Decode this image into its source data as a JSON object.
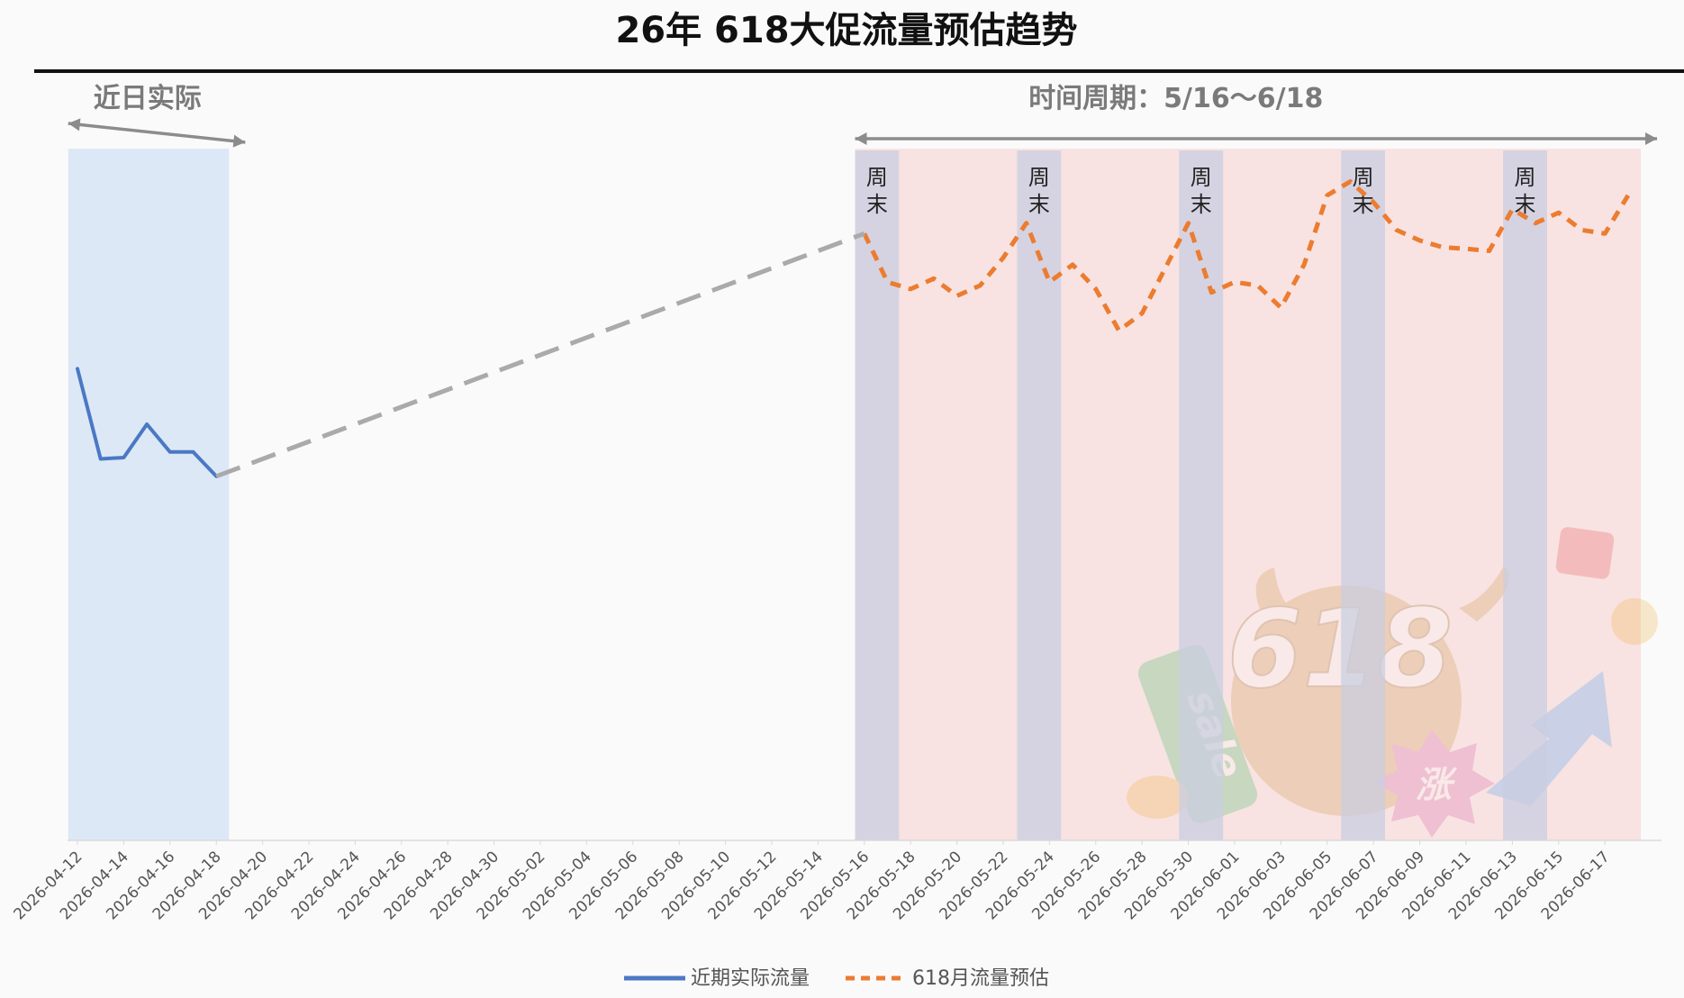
{
  "chart_data": {
    "type": "line",
    "title": "26年 618大促流量预估趋势",
    "x_axis": {
      "type": "date",
      "range": [
        "2026-04-12",
        "2026-06-18"
      ],
      "tick_labels": [
        "2026-04-12",
        "2026-04-14",
        "2026-04-16",
        "2026-04-18",
        "2026-04-20",
        "2026-04-22",
        "2026-04-24",
        "2026-04-26",
        "2026-04-28",
        "2026-04-30",
        "2026-05-02",
        "2026-05-04",
        "2026-05-06",
        "2026-05-08",
        "2026-05-10",
        "2026-05-12",
        "2026-05-14",
        "2026-05-16",
        "2026-05-18",
        "2026-05-20",
        "2026-05-22",
        "2026-05-24",
        "2026-05-26",
        "2026-05-28",
        "2026-05-30",
        "2026-06-01",
        "2026-06-03",
        "2026-06-05",
        "2026-06-07",
        "2026-06-09",
        "2026-06-11",
        "2026-06-13",
        "2026-06-15",
        "2026-06-17"
      ]
    },
    "y_axis": {
      "visible": false,
      "range": [
        0,
        100
      ]
    },
    "grid": false,
    "legend_position": "bottom",
    "regions": [
      {
        "label": "近日实际",
        "start": "2026-04-12",
        "end": "2026-04-18",
        "color": "#dce8f6"
      },
      {
        "label": "时间周期：5/16～6/18",
        "start": "2026-05-16",
        "end": "2026-06-18",
        "color": "#f8e3e2"
      }
    ],
    "weekend_label": "周末",
    "weekend_bands": [
      {
        "start": "2026-05-16",
        "end": "2026-05-17"
      },
      {
        "start": "2026-05-23",
        "end": "2026-05-24"
      },
      {
        "start": "2026-05-30",
        "end": "2026-05-31"
      },
      {
        "start": "2026-06-06",
        "end": "2026-06-07"
      },
      {
        "start": "2026-06-13",
        "end": "2026-06-14"
      }
    ],
    "series": [
      {
        "name": "近期实际流量",
        "color": "#4a78c4",
        "style": "solid",
        "x": [
          "2026-04-12",
          "2026-04-13",
          "2026-04-14",
          "2026-04-15",
          "2026-04-16",
          "2026-04-17",
          "2026-04-18"
        ],
        "y": [
          68,
          55,
          55.2,
          60,
          56,
          56,
          52.5
        ]
      },
      {
        "name": "618月流量预估",
        "color": "#ec7c30",
        "style": "dashed",
        "x": [
          "2026-05-16",
          "2026-05-17",
          "2026-05-18",
          "2026-05-19",
          "2026-05-20",
          "2026-05-21",
          "2026-05-22",
          "2026-05-23",
          "2026-05-24",
          "2026-05-25",
          "2026-05-26",
          "2026-05-27",
          "2026-05-28",
          "2026-05-29",
          "2026-05-30",
          "2026-05-31",
          "2026-06-01",
          "2026-06-02",
          "2026-06-03",
          "2026-06-04",
          "2026-06-05",
          "2026-06-06",
          "2026-06-07",
          "2026-06-08",
          "2026-06-09",
          "2026-06-10",
          "2026-06-11",
          "2026-06-12",
          "2026-06-13",
          "2026-06-14",
          "2026-06-15",
          "2026-06-16",
          "2026-06-17",
          "2026-06-18"
        ],
        "y": [
          87.5,
          80.5,
          79.5,
          81,
          78.5,
          80,
          84,
          89,
          80.5,
          83,
          79.5,
          73.5,
          76,
          82.5,
          89,
          79,
          80.5,
          80,
          76.8,
          83,
          93,
          95,
          92,
          88,
          86.5,
          85.5,
          85.3,
          85,
          91,
          89,
          90.5,
          88,
          87.5,
          93
        ]
      },
      {
        "name": "",
        "color": "#aaaaaa",
        "style": "dashed",
        "x": [
          "2026-04-18",
          "2026-05-16"
        ],
        "y": [
          52.5,
          87.5
        ]
      }
    ],
    "legend": [
      {
        "label": "近期实际流量",
        "color": "#4a78c4",
        "style": "solid"
      },
      {
        "label": "618月流量预估",
        "color": "#ec7c30",
        "style": "dashed"
      }
    ],
    "decoration": {
      "sticker_number": "618",
      "sticker_tag": "sale",
      "sticker_badge": "涨"
    }
  }
}
